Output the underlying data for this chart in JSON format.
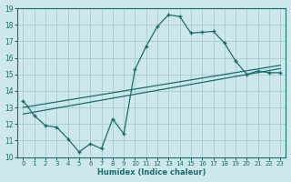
{
  "xlabel": "Humidex (Indice chaleur)",
  "bg_color": "#cde8ec",
  "grid_color": "#aecfd4",
  "line_color": "#1a6b6b",
  "xlim": [
    -0.5,
    23.5
  ],
  "ylim": [
    10,
    19
  ],
  "xticks": [
    0,
    1,
    2,
    3,
    4,
    5,
    6,
    7,
    8,
    9,
    10,
    11,
    12,
    13,
    14,
    15,
    16,
    17,
    18,
    19,
    20,
    21,
    22,
    23
  ],
  "yticks": [
    10,
    11,
    12,
    13,
    14,
    15,
    16,
    17,
    18,
    19
  ],
  "main_x": [
    0,
    1,
    2,
    3,
    4,
    5,
    6,
    7,
    8,
    9,
    10,
    11,
    12,
    13,
    14,
    15,
    16,
    17,
    18,
    19,
    20,
    21,
    22,
    23
  ],
  "main_y": [
    13.4,
    12.5,
    11.9,
    11.8,
    11.1,
    10.3,
    10.8,
    10.5,
    12.3,
    11.4,
    15.3,
    16.7,
    17.9,
    18.6,
    18.5,
    17.5,
    17.55,
    17.6,
    16.9,
    15.8,
    15.0,
    15.2,
    15.1,
    15.1
  ],
  "trend1_x": [
    0,
    23
  ],
  "trend1_y": [
    13.0,
    15.55
  ],
  "trend2_x": [
    0,
    23
  ],
  "trend2_y": [
    12.6,
    15.35
  ]
}
